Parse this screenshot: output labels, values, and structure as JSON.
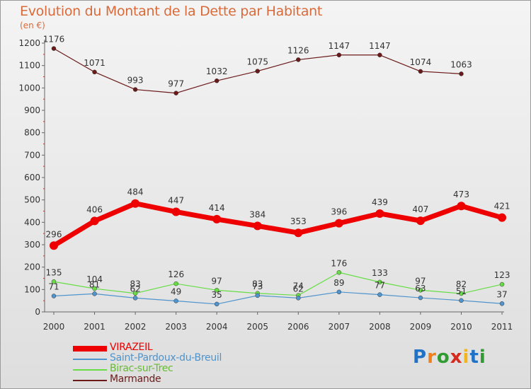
{
  "header": {
    "title": "Evolution du Montant de la Dette par Habitant",
    "subtitle": "(en €)"
  },
  "logo": {
    "text": "Proxiti",
    "colors": [
      "#1f72c7",
      "#f07f1e",
      "#2f9b32",
      "#d7291d",
      "#f2b51c",
      "#1f72c7",
      "#2f9b32"
    ]
  },
  "chart_data": {
    "type": "line",
    "title": "Evolution du Montant de la Dette par Habitant",
    "ylabel": "(en €)",
    "categories": [
      "2000",
      "2001",
      "2002",
      "2003",
      "2004",
      "2005",
      "2006",
      "2007",
      "2008",
      "2009",
      "2010",
      "2011"
    ],
    "ylim": [
      0,
      1200
    ],
    "yticks": [
      0,
      100,
      200,
      300,
      400,
      500,
      600,
      700,
      800,
      900,
      1000,
      1100,
      1200
    ],
    "grid": false,
    "legend_position": "bottom-left",
    "series": [
      {
        "name": "VIRAZEIL",
        "color": "#ee0000",
        "values": [
          296,
          406,
          484,
          447,
          414,
          384,
          353,
          396,
          439,
          407,
          473,
          421
        ]
      },
      {
        "name": "Saint-Pardoux-du-Breuil",
        "color": "#4f94cd",
        "values": [
          71,
          81,
          62,
          49,
          35,
          73,
          62,
          89,
          77,
          63,
          51,
          37
        ]
      },
      {
        "name": "Birac-sur-Trec",
        "color": "#66dd44",
        "values": [
          135,
          104,
          83,
          126,
          97,
          83,
          74,
          176,
          133,
          97,
          82,
          123
        ]
      },
      {
        "name": "Marmande",
        "color": "#6b1a1a",
        "values": [
          1176,
          1071,
          993,
          977,
          1032,
          1075,
          1126,
          1147,
          1147,
          1074,
          1063,
          null
        ]
      }
    ]
  }
}
